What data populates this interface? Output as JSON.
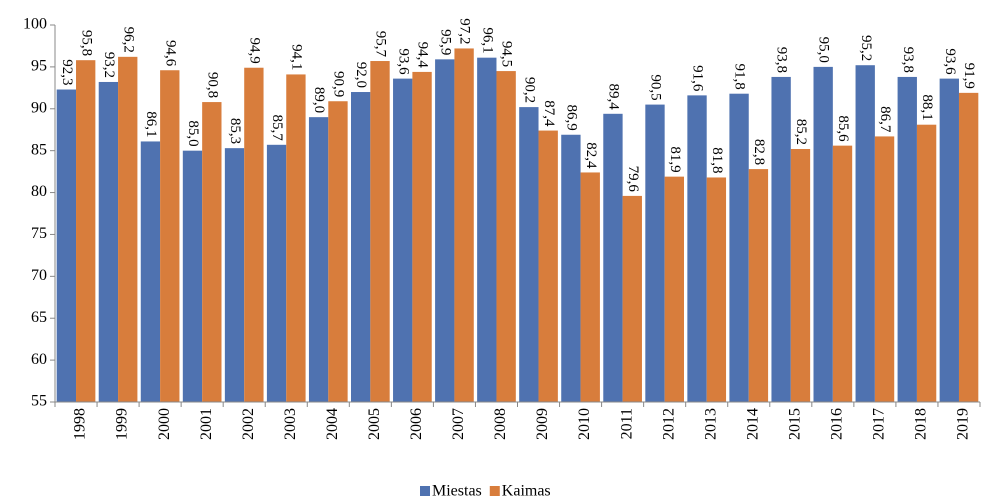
{
  "chart_data": {
    "type": "bar",
    "categories": [
      "1998",
      "1999",
      "2000",
      "2001",
      "2002",
      "2003",
      "2004",
      "2005",
      "2006",
      "2007",
      "2008",
      "2009",
      "2010",
      "2011",
      "2012",
      "2013",
      "2014",
      "2015",
      "2016",
      "2017",
      "2018",
      "2019"
    ],
    "series": [
      {
        "name": "Miestas",
        "color": "#4f72b0",
        "values": [
          92.3,
          93.2,
          86.1,
          85.0,
          85.3,
          85.7,
          89.0,
          92.0,
          93.6,
          95.9,
          96.1,
          90.2,
          86.9,
          89.4,
          90.5,
          91.6,
          91.8,
          93.8,
          95.0,
          95.2,
          93.8,
          93.6
        ],
        "value_labels": [
          "92,3",
          "93,2",
          "86,1",
          "85,0",
          "85,3",
          "85,7",
          "89,0",
          "92,0",
          "93,6",
          "95,9",
          "96,1",
          "90,2",
          "86,9",
          "89,4",
          "90,5",
          "91,6",
          "91,8",
          "93,8",
          "95,0",
          "95,2",
          "93,8",
          "93,6"
        ]
      },
      {
        "name": "Kaimas",
        "color": "#d87d3c",
        "values": [
          95.8,
          96.2,
          94.6,
          90.8,
          94.9,
          94.1,
          90.9,
          95.7,
          94.4,
          97.2,
          94.5,
          87.4,
          82.4,
          79.6,
          81.9,
          81.8,
          82.8,
          85.2,
          85.6,
          86.7,
          88.1,
          91.9
        ],
        "value_labels": [
          "95,8",
          "96,2",
          "94,6",
          "90,8",
          "94,9",
          "94,1",
          "90,9",
          "95,7",
          "94,4",
          "97,2",
          "94,5",
          "87,4",
          "82,4",
          "79,6",
          "81,9",
          "81,8",
          "82,8",
          "85,2",
          "85,6",
          "86,7",
          "88,1",
          "91,9"
        ]
      }
    ],
    "ylim": [
      55,
      100
    ],
    "yticks": [
      55,
      60,
      65,
      70,
      75,
      80,
      85,
      90,
      95,
      100
    ],
    "grid": false,
    "legend": "bottom"
  }
}
